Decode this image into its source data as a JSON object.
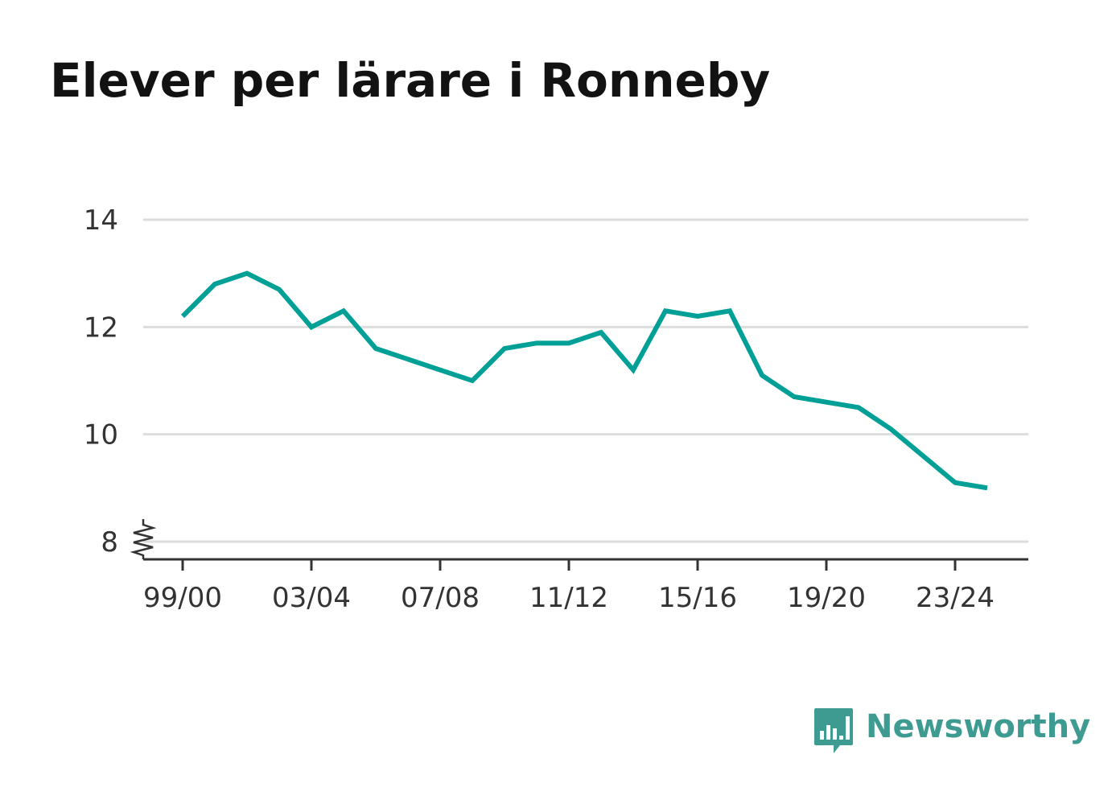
{
  "title": "Elever per lärare i Ronneby",
  "brand": {
    "name": "Newsworthy",
    "color": "#3d9b91",
    "icon": "newsworthy-logo-icon"
  },
  "chart_data": {
    "type": "line",
    "title": "Elever per lärare i Ronneby",
    "xlabel": "",
    "ylabel": "",
    "x": [
      "99/00",
      "00/01",
      "01/02",
      "02/03",
      "03/04",
      "04/05",
      "05/06",
      "06/07",
      "07/08",
      "08/09",
      "09/10",
      "10/11",
      "11/12",
      "12/13",
      "13/14",
      "14/15",
      "15/16",
      "16/17",
      "17/18",
      "18/19",
      "19/20",
      "20/21",
      "21/22",
      "22/23",
      "23/24",
      "24/25"
    ],
    "x_tick_labels": [
      "99/00",
      "03/04",
      "07/08",
      "11/12",
      "15/16",
      "19/20",
      "23/24"
    ],
    "series": [
      {
        "values": [
          12.2,
          12.8,
          13.0,
          12.7,
          12.0,
          12.3,
          11.6,
          11.4,
          11.2,
          11.0,
          11.6,
          11.7,
          11.7,
          11.9,
          11.2,
          12.3,
          12.2,
          12.3,
          11.1,
          10.7,
          10.6,
          10.5,
          10.1,
          9.6,
          9.1,
          9.0
        ],
        "color": "#00a097"
      }
    ],
    "y_ticks": [
      8,
      10,
      12,
      14
    ],
    "ylim": [
      8,
      14
    ],
    "y_axis_break": true,
    "grid": true,
    "gridline_color": "#dddddd",
    "legend": "none"
  }
}
